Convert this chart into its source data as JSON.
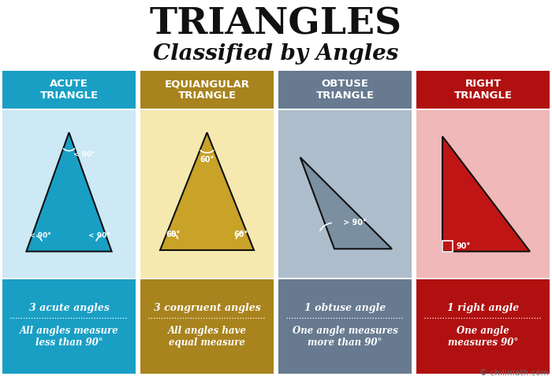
{
  "title": "TRIANGLES",
  "subtitle": "Classified by Angles",
  "bg_color": "#ffffff",
  "columns": [
    {
      "header": "ACUTE\nTRIANGLE",
      "header_bg": "#1a9fc4",
      "body_bg": "#cce9f5",
      "footer_bg": "#1a9fc4",
      "footer_line1": "3 acute angles",
      "footer_line2": "All angles measure\nless than 90°",
      "triangle_color": "#1a9fc4",
      "triangle_type": "acute"
    },
    {
      "header": "EQUIANGULAR\nTRIANGLE",
      "header_bg": "#a8831e",
      "body_bg": "#f5e9b0",
      "footer_bg": "#a8831e",
      "footer_line1": "3 congruent angles",
      "footer_line2": "All angles have\nequal measure",
      "triangle_color": "#c9a228",
      "triangle_type": "equiangular"
    },
    {
      "header": "OBTUSE\nTRIANGLE",
      "header_bg": "#677a90",
      "body_bg": "#adbdcc",
      "footer_bg": "#677a90",
      "footer_line1": "1 obtuse angle",
      "footer_line2": "One angle measures\nmore than 90°",
      "triangle_color": "#7a8fa0",
      "triangle_type": "obtuse"
    },
    {
      "header": "RIGHT\nTRIANGLE",
      "header_bg": "#b01010",
      "body_bg": "#f0b8b8",
      "footer_bg": "#b01010",
      "footer_line1": "1 right angle",
      "footer_line2": "One angle\nmeasures 90°",
      "triangle_color": "#c01515",
      "triangle_type": "right"
    }
  ],
  "watermark": "© chilimath.com"
}
